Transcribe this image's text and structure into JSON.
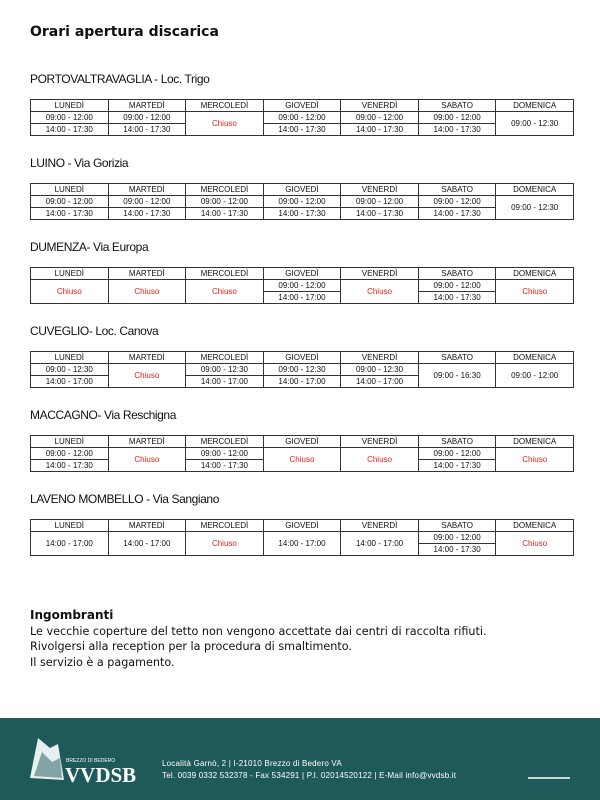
{
  "title": "Orari apertura discarica",
  "sections": [
    {
      "name": "PORTOVALTRAVAGLIA - Loc. Trigo",
      "days": [
        "LUNEDÌ",
        "MARTEDÌ",
        "MERCOLEDÌ",
        "GIOVEDÌ",
        "VENERDÌ",
        "SABATO",
        "DOMENICA"
      ],
      "cells": [
        [
          "09:00 - 12:00",
          "14:00 - 17:30"
        ],
        [
          "09:00 - 12:00",
          "14:00 - 17:30"
        ],
        {
          "closed": "Chiuso"
        },
        [
          "09:00 - 12:00",
          "14:00 - 17:30"
        ],
        [
          "09:00 - 12:00",
          "14:00 - 17:30"
        ],
        [
          "09:00 - 12:00",
          "14:00 - 17:30"
        ],
        [
          "09:00 - 12:30"
        ]
      ]
    },
    {
      "name": "LUINO - Via Gorizia",
      "days": [
        "LUNEDÌ",
        "MARTEDÌ",
        "MERCOLEDÌ",
        "GIOVEDÌ",
        "VENERDÌ",
        "SABATO",
        "DOMENICA"
      ],
      "cells": [
        [
          "09:00 - 12:00",
          "14:00 - 17:30"
        ],
        [
          "09:00 - 12:00",
          "14:00 - 17:30"
        ],
        [
          "09:00 - 12:00",
          "14:00 - 17:30"
        ],
        [
          "09:00 - 12:00",
          "14:00 - 17:30"
        ],
        [
          "09:00 - 12:00",
          "14:00 - 17:30"
        ],
        [
          "09:00 - 12:00",
          "14:00 - 17:30"
        ],
        [
          "09:00 - 12:30"
        ]
      ]
    },
    {
      "name": "DUMENZA- Via Europa",
      "days": [
        "LUNEDÌ",
        "MARTEDÌ",
        "MERCOLEDÌ",
        "GIOVEDÌ",
        "VENERDÌ",
        "SABATO",
        "DOMENICA"
      ],
      "cells": [
        {
          "closed": "Chiuso"
        },
        {
          "closed": "Chiuso"
        },
        {
          "closed": "Chiuso"
        },
        [
          "09:00 - 12:00",
          "14:00 - 17:00"
        ],
        {
          "closed": "Chiuso"
        },
        [
          "09:00 - 12:00",
          "14:00 - 17:30"
        ],
        {
          "closed": "Chiuso"
        }
      ]
    },
    {
      "name": "CUVEGLIO- Loc. Canova",
      "days": [
        "LUNEDÌ",
        "MARTEDÌ",
        "MERCOLEDÌ",
        "GIOVEDÌ",
        "VENERDÌ",
        "SABATO",
        "DOMENICA"
      ],
      "cells": [
        [
          "09:00 - 12:30",
          "14:00 - 17:00"
        ],
        {
          "closed": "Chiuso"
        },
        [
          "09:00 - 12:30",
          "14:00 - 17:00"
        ],
        [
          "09:00 - 12:30",
          "14:00 - 17:00"
        ],
        [
          "09:00 - 12:30",
          "14:00 - 17:00"
        ],
        [
          "09:00 - 16:30"
        ],
        [
          "09:00 - 12:00"
        ]
      ]
    },
    {
      "name": "MACCAGNO- Via Reschigna",
      "days": [
        "LUNEDÌ",
        "MARTEDÌ",
        "MERCOLEDÌ",
        "GIOVEDÌ",
        "VENERDÌ",
        "SABATO",
        "DOMENICA"
      ],
      "cells": [
        [
          "09:00 - 12:00",
          "14:00 - 17:30"
        ],
        {
          "closed": "Chiuso"
        },
        [
          "09:00 - 12:00",
          "14:00 - 17:30"
        ],
        {
          "closed": "Chiuso"
        },
        {
          "closed": "Chiuso"
        },
        [
          "09:00 - 12:00",
          "14:00 - 17:30"
        ],
        {
          "closed": "Chiuso"
        }
      ]
    },
    {
      "name": "LAVENO MOMBELLO - Via Sangiano",
      "days": [
        "LUNEDÌ",
        "MARTEDÌ",
        "MERCOLEDÌ",
        "GIOVEDÌ",
        "VENERDÌ",
        "SABATO",
        "DOMENICA"
      ],
      "cells": [
        [
          "14:00 - 17:00"
        ],
        [
          "14:00 - 17:00"
        ],
        {
          "closed": "Chiuso"
        },
        [
          "14:00 - 17:00"
        ],
        [
          "14:00 - 17:00"
        ],
        [
          "09:00 - 12:00",
          "14:00 - 17:30"
        ],
        {
          "closed": "Chiuso"
        }
      ]
    }
  ],
  "closed_color": "#e2231a",
  "notice": {
    "heading": "Ingombranti",
    "lines": [
      "Le vecchie coperture del tetto non vengono accettate dai centri di raccolta rifiuti.",
      "Rivolgersi alla reception per la procedura di smaltimento.",
      "Il servizio è a pagamento."
    ]
  },
  "footer": {
    "brand_sub": "BREZZO DI BEDERO",
    "brand": "VVDSB",
    "address": "Località Garnò, 2 | I-21010  Brezzo di Bedero VA",
    "contacts": "Tel. 0039 0332 532378 - Fax 534291 | P.I. 02014520122  | E-Mail info@vvdsb.it"
  }
}
